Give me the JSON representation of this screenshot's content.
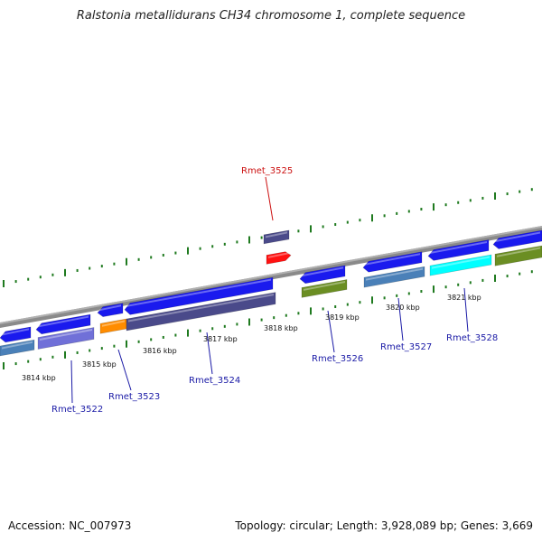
{
  "title": "Ralstonia metallidurans CH34 chromosome 1, complete sequence",
  "footer": {
    "accession": "Accession: NC_007973",
    "summary": "Topology: circular; Length: 3,928,089 bp; Genes: 3,669"
  },
  "ruler_labels": [
    "3814 kbp",
    "3815 kbp",
    "3816 kbp",
    "3817 kbp",
    "3818 kbp",
    "3819 kbp",
    "3820 kbp",
    "3821 kbp"
  ],
  "gene_labels": [
    {
      "text": "Rmet_3522",
      "color": "#1a1aa6"
    },
    {
      "text": "Rmet_3523",
      "color": "#1a1aa6"
    },
    {
      "text": "Rmet_3524",
      "color": "#1a1aa6"
    },
    {
      "text": "Rmet_3525",
      "color": "#cc1111"
    },
    {
      "text": "Rmet_3526",
      "color": "#1a1aa6"
    },
    {
      "text": "Rmet_3527",
      "color": "#1a1aa6"
    },
    {
      "text": "Rmet_3528",
      "color": "#1a1aa6"
    }
  ],
  "colors": {
    "backbone": "#8a8a8a",
    "tick": "#1f7a1f",
    "forward_cds": "#1a1aee",
    "slate": "#4a4a8a",
    "steel": "#4a80b8",
    "lavender": "#7070d8",
    "orange": "#ff8c00",
    "olive": "#6b8e23",
    "cyan": "#00ffff",
    "red": "#ff1111"
  }
}
